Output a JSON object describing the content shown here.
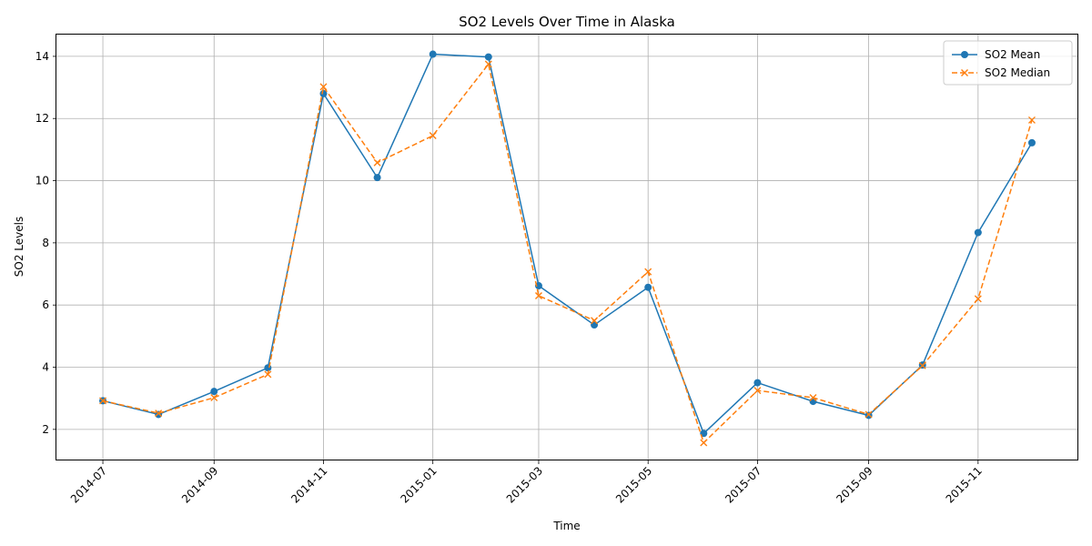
{
  "chart_data": {
    "type": "line",
    "title": "SO2 Levels Over Time in Alaska",
    "xlabel": "Time",
    "ylabel": "SO2 Levels",
    "x": [
      "2014-07",
      "2014-08",
      "2014-09",
      "2014-10",
      "2014-11",
      "2014-12",
      "2015-01",
      "2015-02",
      "2015-03",
      "2015-04",
      "2015-05",
      "2015-06",
      "2015-07",
      "2015-08",
      "2015-09",
      "2015-10",
      "2015-11",
      "2015-12"
    ],
    "x_ticks": [
      "2014-07",
      "2014-09",
      "2014-11",
      "2015-01",
      "2015-03",
      "2015-05",
      "2015-07",
      "2015-09",
      "2015-11"
    ],
    "y_ticks": [
      2,
      4,
      6,
      8,
      10,
      12,
      14
    ],
    "ylim": [
      1.0,
      14.7
    ],
    "grid": true,
    "legend_position": "top-right",
    "series": [
      {
        "name": "SO2 Mean",
        "color": "#1f77b4",
        "marker": "circle",
        "line_style": "solid",
        "values": [
          2.92,
          2.48,
          3.22,
          3.98,
          12.8,
          10.1,
          14.07,
          13.98,
          6.62,
          5.36,
          6.57,
          1.87,
          3.5,
          2.9,
          2.45,
          4.07,
          8.33,
          11.22
        ]
      },
      {
        "name": "SO2 Median",
        "color": "#ff7f0e",
        "marker": "x",
        "line_style": "dashed",
        "values": [
          2.92,
          2.52,
          3.02,
          3.77,
          13.02,
          10.58,
          11.45,
          13.75,
          6.3,
          5.5,
          7.07,
          1.57,
          3.25,
          3.02,
          2.48,
          4.05,
          6.2,
          11.95
        ]
      }
    ]
  }
}
